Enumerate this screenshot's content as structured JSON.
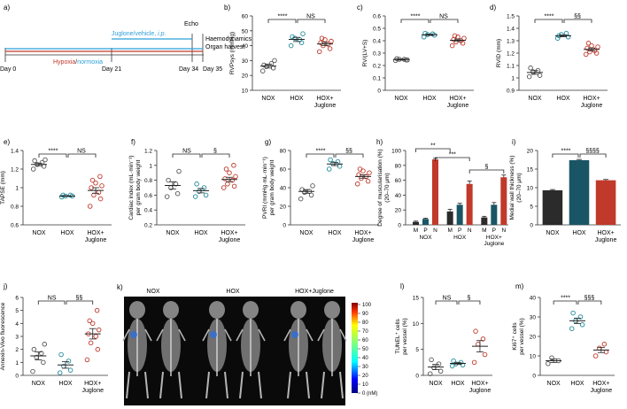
{
  "colors": {
    "nox": "#555555",
    "hox": "#1f8a9a",
    "juglone": "#c0392b",
    "hoxBar": "#1a5566",
    "noxBar": "#2b2b2b",
    "red": "#c0392b",
    "cyan": "#2f9fd8",
    "axis": "#333333"
  },
  "timeline": {
    "label": "a)",
    "echo": "Echo",
    "treatment_prefix": "Juglone/vehicle, ",
    "treatment_ip": "i.p.",
    "haemodynamics": "Haemodynamics",
    "organ_harvest": "Organ harvest",
    "hypoxia": "Hypoxia",
    "slash": "/",
    "normoxia": "normoxia",
    "days": [
      "Day 0",
      "Day 21",
      "Day 34",
      "Day 35"
    ]
  },
  "groups": [
    "NOX",
    "HOX",
    "HOX+",
    "Juglone"
  ],
  "chart_data": [
    {
      "id": "b",
      "panel": "b)",
      "type": "scatter",
      "ylabel": "RVPsys (mmHg)",
      "ylim": [
        10,
        60
      ],
      "yticks": [
        10,
        20,
        30,
        40,
        50,
        60
      ],
      "series": [
        {
          "name": "NOX",
          "values": [
            23,
            25,
            26,
            28,
            27,
            30
          ],
          "mean": 26.3,
          "sem": 1.3
        },
        {
          "name": "HOX",
          "values": [
            40,
            42,
            45,
            44,
            46,
            48
          ],
          "mean": 44.2,
          "sem": 1.4
        },
        {
          "name": "HOX+Juglone",
          "values": [
            36,
            38,
            40,
            41,
            42,
            43,
            44,
            45
          ],
          "mean": 41.2,
          "sem": 1.1
        }
      ],
      "sig": [
        {
          "from": 0,
          "to": 1,
          "label": "****"
        },
        {
          "from": 1,
          "to": 2,
          "label": "NS"
        }
      ]
    },
    {
      "id": "c",
      "panel": "c)",
      "type": "scatter",
      "ylabel": "RV/(LV+S)",
      "ylim": [
        0,
        0.6
      ],
      "yticks": [
        0,
        0.1,
        0.2,
        0.3,
        0.4,
        0.5,
        0.6
      ],
      "series": [
        {
          "name": "NOX",
          "values": [
            0.24,
            0.245,
            0.25,
            0.25,
            0.255,
            0.245
          ],
          "mean": 0.248,
          "sem": 0.004
        },
        {
          "name": "HOX",
          "values": [
            0.43,
            0.445,
            0.45,
            0.455,
            0.46
          ],
          "mean": 0.448,
          "sem": 0.005
        },
        {
          "name": "HOX+Juglone",
          "values": [
            0.36,
            0.38,
            0.39,
            0.4,
            0.41,
            0.42,
            0.43,
            0.44
          ],
          "mean": 0.404,
          "sem": 0.01
        }
      ],
      "sig": [
        {
          "from": 0,
          "to": 1,
          "label": "****"
        },
        {
          "from": 1,
          "to": 2,
          "label": "NS"
        }
      ]
    },
    {
      "id": "d",
      "panel": "d)",
      "type": "scatter",
      "ylabel": "RVID (mm)",
      "ylim": [
        0.9,
        1.5
      ],
      "yticks": [
        0.9,
        1.0,
        1.1,
        1.2,
        1.3,
        1.4,
        1.5
      ],
      "series": [
        {
          "name": "NOX",
          "values": [
            1.01,
            1.02,
            1.05,
            1.06,
            1.08
          ],
          "mean": 1.044,
          "sem": 0.015
        },
        {
          "name": "HOX",
          "values": [
            1.32,
            1.33,
            1.35,
            1.36,
            1.34
          ],
          "mean": 1.34,
          "sem": 0.008
        },
        {
          "name": "HOX+Juglone",
          "values": [
            1.19,
            1.2,
            1.21,
            1.22,
            1.24,
            1.25,
            1.26,
            1.28
          ],
          "mean": 1.23,
          "sem": 0.012
        }
      ],
      "sig": [
        {
          "from": 0,
          "to": 1,
          "label": "****"
        },
        {
          "from": 1,
          "to": 2,
          "label": "§§"
        }
      ]
    },
    {
      "id": "e",
      "panel": "e)",
      "type": "scatter",
      "ylabel": "TAPSE (mm)",
      "ylim": [
        0.6,
        1.4
      ],
      "yticks": [
        0.6,
        0.8,
        1.0,
        1.2,
        1.4
      ],
      "series": [
        {
          "name": "NOX",
          "values": [
            1.2,
            1.23,
            1.25,
            1.27,
            1.29,
            1.3
          ],
          "mean": 1.25,
          "sem": 0.014
        },
        {
          "name": "HOX",
          "values": [
            0.9,
            0.91,
            0.91,
            0.92,
            0.92
          ],
          "mean": 0.91,
          "sem": 0.004
        },
        {
          "name": "HOX+Juglone",
          "values": [
            0.8,
            0.88,
            0.92,
            0.95,
            1.0,
            1.02,
            1.05,
            1.08,
            1.12
          ],
          "mean": 0.97,
          "sem": 0.03
        }
      ],
      "sig": [
        {
          "from": 0,
          "to": 1,
          "label": "****"
        },
        {
          "from": 1,
          "to": 2,
          "label": "NS"
        }
      ]
    },
    {
      "id": "f",
      "panel": "f)",
      "type": "scatter",
      "ylabel": "Cardiac index (mL·min⁻¹) per gram body weight",
      "ylim": [
        0.2,
        1.2
      ],
      "yticks": [
        0.2,
        0.4,
        0.6,
        0.8,
        1.0,
        1.2
      ],
      "series": [
        {
          "name": "NOX",
          "values": [
            0.58,
            0.62,
            0.7,
            0.75,
            0.8,
            0.92
          ],
          "mean": 0.73,
          "sem": 0.05
        },
        {
          "name": "HOX",
          "values": [
            0.58,
            0.6,
            0.65,
            0.7,
            0.75
          ],
          "mean": 0.66,
          "sem": 0.03
        },
        {
          "name": "HOX+Juglone",
          "values": [
            0.7,
            0.72,
            0.75,
            0.8,
            0.82,
            0.85,
            0.9,
            0.95,
            1.0
          ],
          "mean": 0.81,
          "sem": 0.03
        }
      ],
      "sig": [
        {
          "from": 0,
          "to": 1,
          "label": "NS"
        },
        {
          "from": 1,
          "to": 2,
          "label": "§"
        }
      ]
    },
    {
      "id": "g",
      "panel": "g)",
      "type": "scatter",
      "ylabel": "PVRI (mmHg·mL·min⁻¹) per gram body weight",
      "ylim": [
        0,
        80
      ],
      "yticks": [
        0,
        20,
        40,
        60,
        80
      ],
      "series": [
        {
          "name": "NOX",
          "values": [
            28,
            32,
            35,
            36,
            38,
            42
          ],
          "mean": 36,
          "sem": 2
        },
        {
          "name": "HOX",
          "values": [
            60,
            63,
            66,
            68,
            70
          ],
          "mean": 65.5,
          "sem": 1.8
        },
        {
          "name": "HOX+Juglone",
          "values": [
            44,
            47,
            50,
            52,
            54,
            56,
            58,
            60
          ],
          "mean": 52,
          "sem": 1.8
        }
      ],
      "sig": [
        {
          "from": 0,
          "to": 1,
          "label": "****"
        },
        {
          "from": 1,
          "to": 2,
          "label": "§§"
        }
      ]
    },
    {
      "id": "h",
      "panel": "h)",
      "type": "bar",
      "ylabel": "Degree of muscularisation (%) (20–70 μm)",
      "ylim": [
        0,
        100
      ],
      "yticks": [
        0,
        20,
        40,
        60,
        80,
        100
      ],
      "bar_labels": [
        "M",
        "P",
        "N"
      ],
      "group_labels": [
        "NOX",
        "HOX",
        "HOX+",
        "Juglone"
      ],
      "series": [
        {
          "name": "NOX",
          "values": [
            4,
            8,
            88
          ],
          "errors": [
            1,
            1,
            1.5
          ]
        },
        {
          "name": "HOX",
          "values": [
            18,
            27,
            55
          ],
          "errors": [
            3,
            2,
            4
          ]
        },
        {
          "name": "HOX+Juglone",
          "values": [
            10,
            27,
            64
          ],
          "errors": [
            1.5,
            3,
            3
          ]
        }
      ],
      "sig": [
        {
          "label": "**"
        },
        {
          "label": "***"
        },
        {
          "label": "§"
        }
      ]
    },
    {
      "id": "i",
      "panel": "i)",
      "type": "bar",
      "ylabel": "Medial wall thickness (%) (20–70 μm)",
      "ylim": [
        0,
        20
      ],
      "yticks": [
        0,
        5,
        10,
        15,
        20
      ],
      "series": [
        {
          "name": "NOX",
          "values": [
            9.3
          ],
          "errors": [
            0.2
          ]
        },
        {
          "name": "HOX",
          "values": [
            17.4
          ],
          "errors": [
            0.2
          ]
        },
        {
          "name": "HOX+Juglone",
          "values": [
            12.0
          ],
          "errors": [
            0.2
          ]
        }
      ],
      "sig": [
        {
          "from": 0,
          "to": 1,
          "label": "****"
        },
        {
          "from": 1,
          "to": 2,
          "label": "§§§§"
        }
      ]
    },
    {
      "id": "j",
      "panel": "j)",
      "type": "scatter",
      "ylabel": "Annexin-Vivo fluorescence",
      "ylim": [
        0,
        6
      ],
      "yticks": [
        0,
        1,
        2,
        3,
        4,
        5,
        6
      ],
      "series": [
        {
          "name": "NOX",
          "values": [
            0.3,
            1.0,
            1.4,
            1.7,
            2.0,
            2.4
          ],
          "mean": 1.5,
          "sem": 0.3
        },
        {
          "name": "HOX",
          "values": [
            0.2,
            0.4,
            0.7,
            1.1,
            1.6
          ],
          "mean": 0.8,
          "sem": 0.25
        },
        {
          "name": "HOX+Juglone",
          "values": [
            1.2,
            2.0,
            2.5,
            3.0,
            3.2,
            3.5,
            4.0,
            4.2,
            5.0
          ],
          "mean": 3.2,
          "sem": 0.4
        }
      ],
      "sig": [
        {
          "from": 0,
          "to": 1,
          "label": "NS"
        },
        {
          "from": 1,
          "to": 2,
          "label": "§§"
        }
      ]
    },
    {
      "id": "l",
      "panel": "l)",
      "type": "scatter",
      "ylabel": "TUNEL⁺ cells per vessel (%)",
      "ylim": [
        0,
        15
      ],
      "yticks": [
        0,
        5,
        10,
        15
      ],
      "series": [
        {
          "name": "NOX",
          "values": [
            0.3,
            0.8,
            1.5,
            2.2,
            3.0
          ],
          "mean": 1.6,
          "sem": 0.5
        },
        {
          "name": "HOX",
          "values": [
            1.8,
            2.0,
            2.2,
            2.5,
            2.8
          ],
          "mean": 2.3,
          "sem": 0.2
        },
        {
          "name": "HOX+Juglone",
          "values": [
            2.5,
            4.0,
            6.0,
            7.0,
            8.5
          ],
          "mean": 5.6,
          "sem": 1.1
        }
      ],
      "sig": [
        {
          "from": 0,
          "to": 1,
          "label": "NS"
        },
        {
          "from": 1,
          "to": 2,
          "label": "§"
        }
      ]
    },
    {
      "id": "m",
      "panel": "m)",
      "type": "scatter",
      "ylabel": "Ki67⁺ cells per vessel (%)",
      "ylim": [
        0,
        40
      ],
      "yticks": [
        0,
        10,
        20,
        30,
        40
      ],
      "series": [
        {
          "name": "NOX",
          "values": [
            6,
            7.5,
            9
          ],
          "mean": 7.5,
          "sem": 0.9
        },
        {
          "name": "HOX",
          "values": [
            24,
            26,
            28,
            30,
            32
          ],
          "mean": 28,
          "sem": 1.4
        },
        {
          "name": "HOX+Juglone",
          "values": [
            10,
            12,
            14,
            16
          ],
          "mean": 13,
          "sem": 1.3
        }
      ],
      "sig": [
        {
          "from": 0,
          "to": 1,
          "label": "****"
        },
        {
          "from": 1,
          "to": 2,
          "label": "§§§"
        }
      ]
    }
  ],
  "imaging": {
    "panel": "k)",
    "groups": [
      "NOX",
      "HOX",
      "HOX+Juglone"
    ],
    "colorbar_ticks": [
      "100",
      "90",
      "80",
      "70",
      "60",
      "50",
      "40",
      "30",
      "20",
      "10",
      "0 (nM)"
    ]
  }
}
